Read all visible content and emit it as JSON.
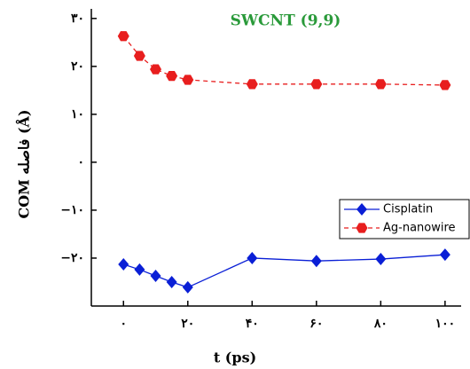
{
  "chart_data": {
    "type": "line",
    "title": "SWCNT (9,9)",
    "x_label": "t (ps)",
    "y_label": "COM فاصله (Å)",
    "x": [
      0,
      5,
      10,
      15,
      20,
      40,
      60,
      80,
      100
    ],
    "series": [
      {
        "name": "Cisplatin",
        "color": "#0a1fd6",
        "marker": "diamond",
        "dashed": false,
        "values": [
          -21.3,
          -22.4,
          -23.7,
          -25,
          -26.1,
          -20,
          -20.6,
          -20.2,
          -19.3
        ]
      },
      {
        "name": "Ag-nanowire",
        "color": "#e81e1e",
        "marker": "hexagon",
        "dashed": true,
        "values": [
          26.3,
          22.2,
          19.4,
          18,
          17.2,
          16.3,
          16.3,
          16.3,
          16.1
        ]
      }
    ],
    "xlim": [
      -10,
      105
    ],
    "xticks": [
      {
        "value": 0,
        "label": "۰"
      },
      {
        "value": 20,
        "label": "۲۰"
      },
      {
        "value": 40,
        "label": "۴۰"
      },
      {
        "value": 60,
        "label": "۶۰"
      },
      {
        "value": 80,
        "label": "۸۰"
      },
      {
        "value": 100,
        "label": "۱۰۰"
      }
    ],
    "ylim": [
      -30,
      32
    ],
    "yticks": [
      {
        "value": -20,
        "label": "−۲۰"
      },
      {
        "value": -10,
        "label": "−۱۰"
      },
      {
        "value": 0,
        "label": "۰"
      },
      {
        "value": 10,
        "label": "۱۰"
      },
      {
        "value": 20,
        "label": "۲۰"
      },
      {
        "value": 30,
        "label": "۳۰"
      }
    ],
    "grid": false,
    "legend": "right"
  }
}
